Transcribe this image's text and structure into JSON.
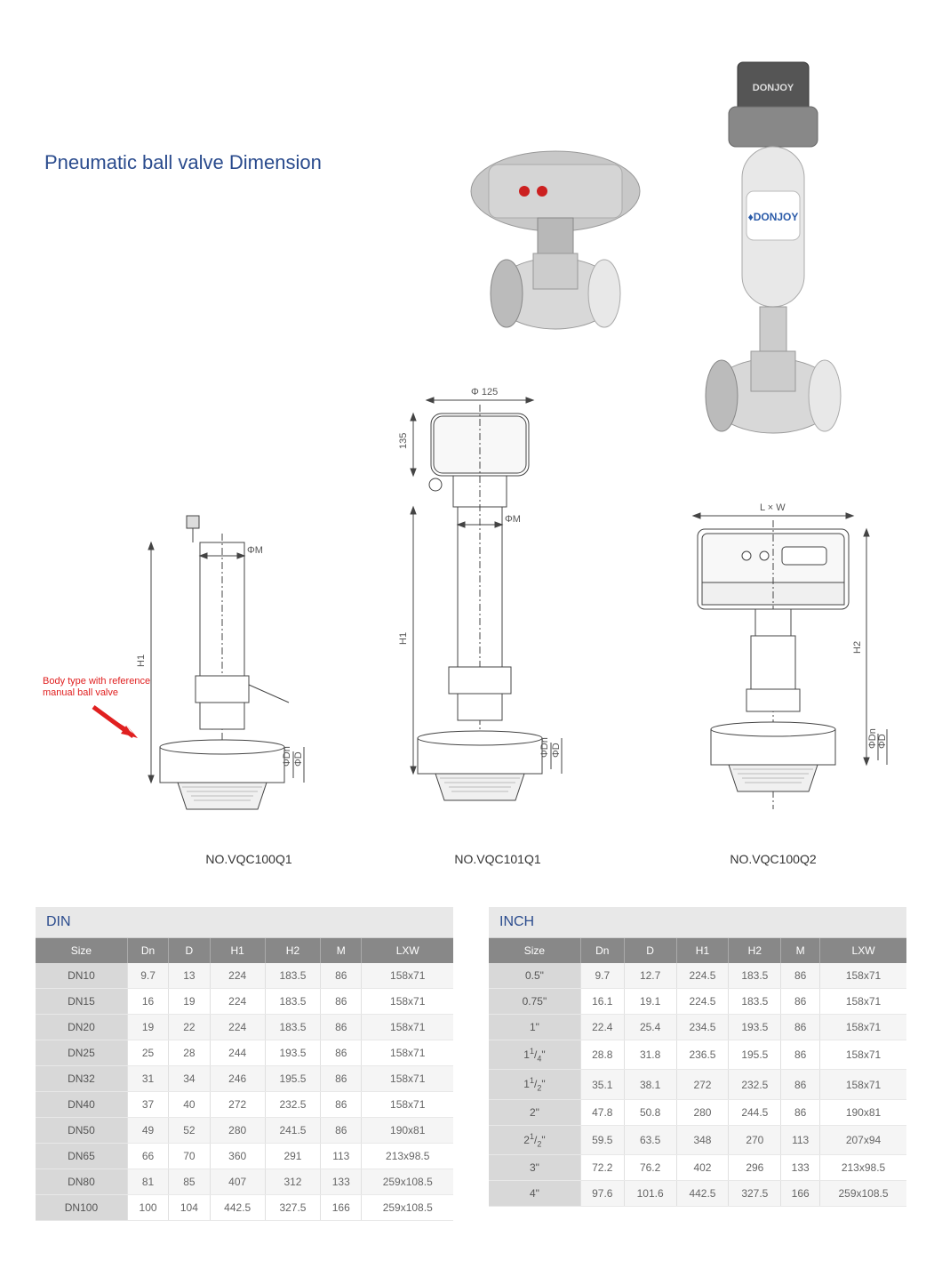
{
  "title": "Pneumatic ball valve Dimension",
  "title_color": "#2a4b8d",
  "note_red": "Body type with reference\nmanual ball valve",
  "note_color": "#e02020",
  "diagrams": {
    "left": {
      "label": "NO.VQC100Q1",
      "dim_h": "H1",
      "dim_m": "ΦM",
      "dim_dn": "ΦDn",
      "dim_d": "ΦD"
    },
    "center": {
      "label": "NO.VQC101Q1",
      "dim_h": "H1",
      "dim_top": "Φ 125",
      "dim_135": "135",
      "dim_m": "ΦM",
      "dim_dn": "ΦDn",
      "dim_d": "ΦD"
    },
    "right": {
      "label": "NO.VQC100Q2",
      "dim_h": "H2",
      "dim_lw": "L × W",
      "dim_dn": "ΦDn",
      "dim_d": "ΦD"
    }
  },
  "table_din": {
    "title": "DIN",
    "columns": [
      "Size",
      "Dn",
      "D",
      "H1",
      "H2",
      "M",
      "LXW"
    ],
    "rows": [
      [
        "DN10",
        "9.7",
        "13",
        "224",
        "183.5",
        "86",
        "158x71"
      ],
      [
        "DN15",
        "16",
        "19",
        "224",
        "183.5",
        "86",
        "158x71"
      ],
      [
        "DN20",
        "19",
        "22",
        "224",
        "183.5",
        "86",
        "158x71"
      ],
      [
        "DN25",
        "25",
        "28",
        "244",
        "193.5",
        "86",
        "158x71"
      ],
      [
        "DN32",
        "31",
        "34",
        "246",
        "195.5",
        "86",
        "158x71"
      ],
      [
        "DN40",
        "37",
        "40",
        "272",
        "232.5",
        "86",
        "158x71"
      ],
      [
        "DN50",
        "49",
        "52",
        "280",
        "241.5",
        "86",
        "190x81"
      ],
      [
        "DN65",
        "66",
        "70",
        "360",
        "291",
        "113",
        "213x98.5"
      ],
      [
        "DN80",
        "81",
        "85",
        "407",
        "312",
        "133",
        "259x108.5"
      ],
      [
        "DN100",
        "100",
        "104",
        "442.5",
        "327.5",
        "166",
        "259x108.5"
      ]
    ]
  },
  "table_inch": {
    "title": "INCH",
    "columns": [
      "Size",
      "Dn",
      "D",
      "H1",
      "H2",
      "M",
      "LXW"
    ],
    "rows": [
      [
        "0.5\"",
        "9.7",
        "12.7",
        "224.5",
        "183.5",
        "86",
        "158x71"
      ],
      [
        "0.75\"",
        "16.1",
        "19.1",
        "224.5",
        "183.5",
        "86",
        "158x71"
      ],
      [
        "1\"",
        "22.4",
        "25.4",
        "234.5",
        "193.5",
        "86",
        "158x71"
      ],
      [
        "1¹/₄\"",
        "28.8",
        "31.8",
        "236.5",
        "195.5",
        "86",
        "158x71"
      ],
      [
        "1¹/₂\"",
        "35.1",
        "38.1",
        "272",
        "232.5",
        "86",
        "158x71"
      ],
      [
        "2\"",
        "47.8",
        "50.8",
        "280",
        "244.5",
        "86",
        "190x81"
      ],
      [
        "2¹/₂\"",
        "59.5",
        "63.5",
        "348",
        "270",
        "113",
        "207x94"
      ],
      [
        "3\"",
        "72.2",
        "76.2",
        "402",
        "296",
        "133",
        "213x98.5"
      ],
      [
        "4\"",
        "97.6",
        "101.6",
        "442.5",
        "327.5",
        "166",
        "259x108.5"
      ]
    ]
  },
  "colors": {
    "header_bg": "#888888",
    "header_text": "#ffffff",
    "row_odd": "#f5f5f5",
    "row_even": "#ffffff",
    "size_col_bg": "#d8d8d8",
    "title_bg": "#e8e8e8",
    "border": "#e0e0e0",
    "text": "#666666"
  }
}
